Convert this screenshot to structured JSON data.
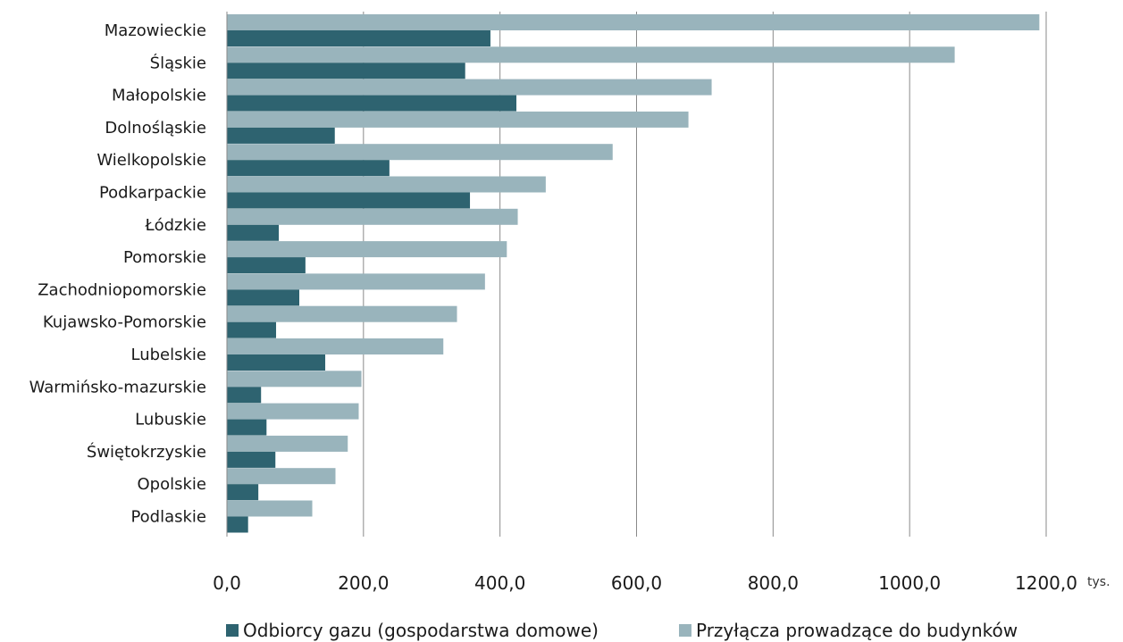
{
  "chart_data": {
    "type": "bar",
    "orientation": "horizontal",
    "categories": [
      "Mazowieckie",
      "Śląskie",
      "Małopolskie",
      "Dolnośląskie",
      "Wielkopolskie",
      "Podkarpackie",
      "Łódzkie",
      "Pomorskie",
      "Zachodniopomorskie",
      "Kujawsko-Pomorskie",
      "Lubelskie",
      "Warmińsko-mazurskie",
      "Lubuskie",
      "Świętokrzyskie",
      "Opolskie",
      "Podlaskie"
    ],
    "series": [
      {
        "name": "Przyłącza prowadzące do budynków",
        "color": "#99b4bc",
        "values": [
          1190,
          1066,
          710,
          676,
          565,
          467,
          426,
          410,
          378,
          337,
          317,
          197,
          193,
          177,
          159,
          125
        ]
      },
      {
        "name": "Odbiorcy gazu (gospodarstwa domowe)",
        "color": "#2e6370",
        "values": [
          386,
          349,
          424,
          158,
          238,
          356,
          76,
          115,
          106,
          72,
          144,
          50,
          58,
          71,
          46,
          31
        ]
      }
    ],
    "x_ticks": [
      "0,0",
      "200,0",
      "400,0",
      "600,0",
      "800,0",
      "1000,0",
      "1200,0"
    ],
    "x_tick_values": [
      0,
      200,
      400,
      600,
      800,
      1000,
      1200
    ],
    "xlim": [
      0,
      1200
    ],
    "x_unit": "tys.",
    "grid": true,
    "legend_position": "bottom"
  }
}
